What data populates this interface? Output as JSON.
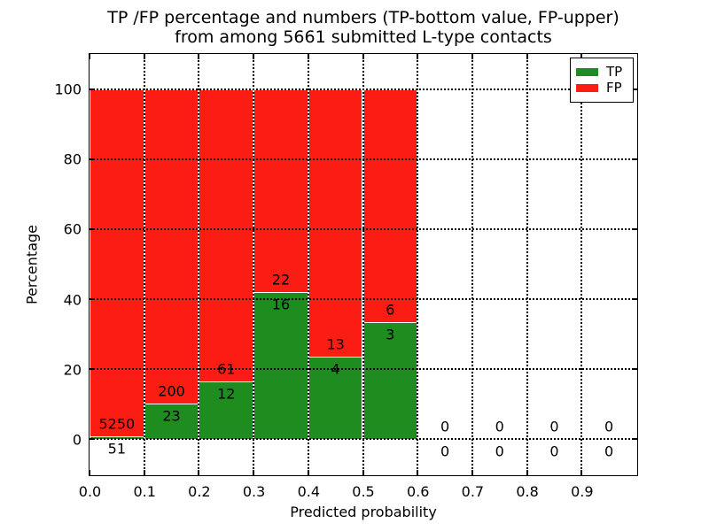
{
  "figure": {
    "title_line1": "TP /FP percentage and numbers (TP-bottom value, FP-upper)",
    "title_line2": "from among 5661 submitted L-type contacts"
  },
  "chart_data": {
    "type": "bar",
    "stacked": true,
    "title": "TP /FP percentage and numbers (TP-bottom value, FP-upper)\nfrom among 5661 submitted L-type contacts",
    "xlabel": "Predicted probability",
    "ylabel": "Percentage",
    "xlim": [
      0.0,
      1.0
    ],
    "ylim": [
      -10,
      110
    ],
    "x_tick_labels": [
      "0.0",
      "0.1",
      "0.2",
      "0.3",
      "0.4",
      "0.5",
      "0.6",
      "0.7",
      "0.8",
      "0.9"
    ],
    "y_tick_values": [
      0,
      20,
      40,
      60,
      80,
      100
    ],
    "grid": "dotted, both axes, drawn over bars",
    "bin_width": 0.1,
    "total_contacts": 5661,
    "bins": [
      {
        "range": "0.0-0.1",
        "tp_count": 51,
        "fp_count": 5250,
        "tp_percent": 0.96,
        "fp_percent": 99.04
      },
      {
        "range": "0.1-0.2",
        "tp_count": 23,
        "fp_count": 200,
        "tp_percent": 10.31,
        "fp_percent": 89.69
      },
      {
        "range": "0.2-0.3",
        "tp_count": 12,
        "fp_count": 61,
        "tp_percent": 16.44,
        "fp_percent": 83.56
      },
      {
        "range": "0.3-0.4",
        "tp_count": 16,
        "fp_count": 22,
        "tp_percent": 42.11,
        "fp_percent": 57.89
      },
      {
        "range": "0.4-0.5",
        "tp_count": 4,
        "fp_count": 13,
        "tp_percent": 23.53,
        "fp_percent": 76.47
      },
      {
        "range": "0.5-0.6",
        "tp_count": 3,
        "fp_count": 6,
        "tp_percent": 33.33,
        "fp_percent": 66.67
      },
      {
        "range": "0.6-0.7",
        "tp_count": 0,
        "fp_count": 0,
        "tp_percent": 0,
        "fp_percent": 0
      },
      {
        "range": "0.7-0.8",
        "tp_count": 0,
        "fp_count": 0,
        "tp_percent": 0,
        "fp_percent": 0
      },
      {
        "range": "0.8-0.9",
        "tp_count": 0,
        "fp_count": 0,
        "tp_percent": 0,
        "fp_percent": 0
      },
      {
        "range": "0.9-1.0",
        "tp_count": 0,
        "fp_count": 0,
        "tp_percent": 0,
        "fp_percent": 0
      }
    ],
    "legend": {
      "position": "upper right",
      "entries": [
        {
          "label": "TP",
          "color": "#1f8c1f"
        },
        {
          "label": "FP",
          "color": "#fb1d13"
        }
      ]
    },
    "colors": {
      "tp": "#1f8c1f",
      "fp": "#fb1d13",
      "grid": "#000000",
      "background": "#ffffff",
      "bar_edge": "#ffffff"
    }
  }
}
